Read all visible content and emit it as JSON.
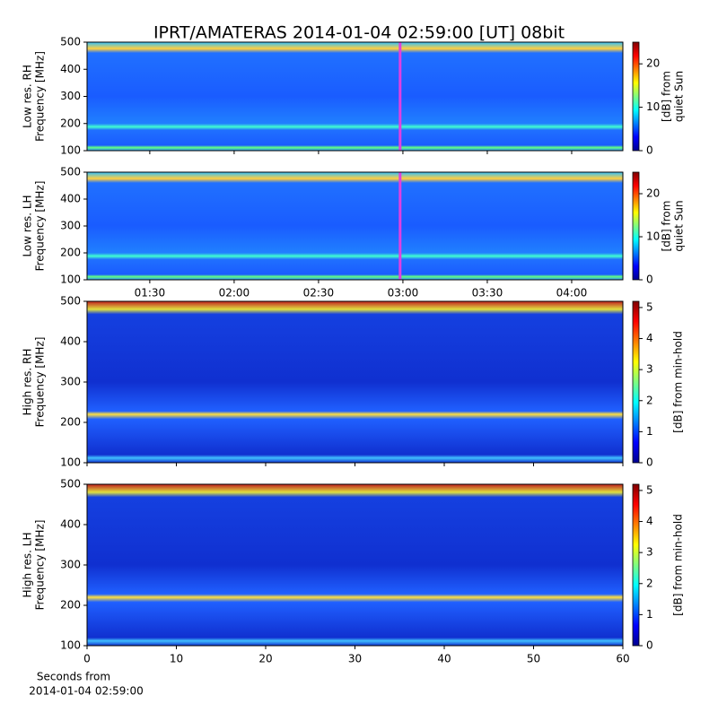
{
  "title": "IPRT/AMATERAS 2014-01-04 02:59:00 [UT]   08bit",
  "chart_data": [
    {
      "type": "spectrogram",
      "ylabel": [
        "Low res. RH",
        "Frequency [MHz]"
      ],
      "ylim": [
        100,
        500
      ],
      "yticks": [
        100,
        200,
        300,
        400,
        500
      ],
      "xlim": [
        67.7,
        258.2
      ],
      "xticks": [
        {
          "value": 90,
          "label": "01:30"
        },
        {
          "value": 120,
          "label": "02:00"
        },
        {
          "value": 150,
          "label": "02:30"
        },
        {
          "value": 180,
          "label": "03:00"
        },
        {
          "value": 210,
          "label": "03:30"
        },
        {
          "value": 240,
          "label": "04:00"
        }
      ],
      "show_xticklabels": false,
      "marker_x": 179,
      "marker_color": "#e040e0",
      "clim": [
        0,
        25
      ],
      "cticks": [
        0,
        10,
        20
      ],
      "clabel": [
        "[dB] from",
        "quiet Sun"
      ]
    },
    {
      "type": "spectrogram",
      "ylabel": [
        "Low res. LH",
        "Frequency [MHz]"
      ],
      "ylim": [
        100,
        500
      ],
      "yticks": [
        100,
        200,
        300,
        400,
        500
      ],
      "xlim": [
        67.7,
        258.2
      ],
      "xticks": [
        {
          "value": 90,
          "label": "01:30"
        },
        {
          "value": 120,
          "label": "02:00"
        },
        {
          "value": 150,
          "label": "02:30"
        },
        {
          "value": 180,
          "label": "03:00"
        },
        {
          "value": 210,
          "label": "03:30"
        },
        {
          "value": 240,
          "label": "04:00"
        }
      ],
      "show_xticklabels": true,
      "marker_x": 179,
      "marker_color": "#e040e0",
      "clim": [
        0,
        25
      ],
      "cticks": [
        0,
        10,
        20
      ],
      "clabel": [
        "[dB] from",
        "quiet Sun"
      ]
    },
    {
      "type": "spectrogram",
      "ylabel": [
        "High res. RH",
        "Frequency [MHz]"
      ],
      "ylim": [
        100,
        500
      ],
      "yticks": [
        100,
        200,
        300,
        400,
        500
      ],
      "xlim": [
        0,
        60
      ],
      "xticks": [
        0,
        10,
        20,
        30,
        40,
        50,
        60
      ],
      "show_xticklabels": false,
      "clim": [
        0,
        5.2
      ],
      "cticks": [
        0,
        1,
        2,
        3,
        4,
        5
      ],
      "clabel": [
        "[dB] from min-hold"
      ]
    },
    {
      "type": "spectrogram",
      "ylabel": [
        "High res. LH",
        "Frequency [MHz]"
      ],
      "ylim": [
        100,
        500
      ],
      "yticks": [
        100,
        200,
        300,
        400,
        500
      ],
      "xlim": [
        0,
        60
      ],
      "xticks": [
        0,
        10,
        20,
        30,
        40,
        50,
        60
      ],
      "show_xticklabels": true,
      "xlabel": [
        "Seconds from",
        "2014-01-04 02:59:00"
      ],
      "clim": [
        0,
        5.2
      ],
      "cticks": [
        0,
        1,
        2,
        3,
        4,
        5
      ],
      "clabel": [
        "[dB] from min-hold"
      ]
    }
  ]
}
